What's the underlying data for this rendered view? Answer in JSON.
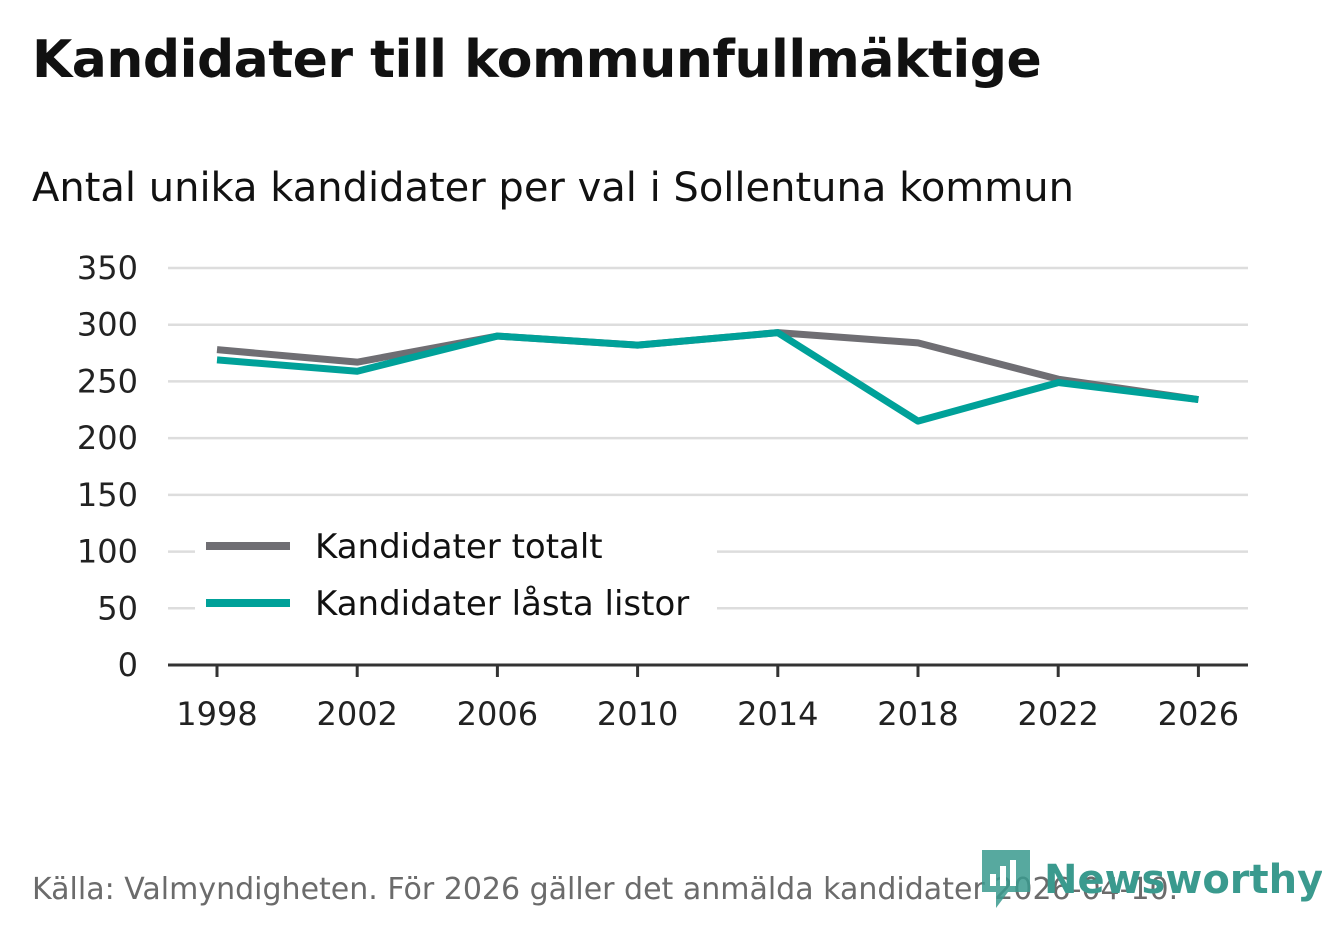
{
  "header": {
    "title": "Kandidater till kommunfullmäktige",
    "subtitle": "Antal unika kandidater per val i Sollentuna kommun"
  },
  "footer": {
    "source": "Källa: Valmyndigheten. För 2026 gäller det anmälda kandidater 2026-04-10.",
    "brand": "Newsworthy",
    "brand_icon": "newsworthy-logo-icon"
  },
  "colors": {
    "total": "#6f6e73",
    "locked": "#00a199",
    "grid": "#dddddd",
    "axis": "#333333",
    "brand": "#3a9a8e"
  },
  "chart_data": {
    "type": "line",
    "title": "Kandidater till kommunfullmäktige",
    "subtitle": "Antal unika kandidater per val i Sollentuna kommun",
    "xlabel": "",
    "ylabel": "",
    "x": [
      "1998",
      "2002",
      "2006",
      "2010",
      "2014",
      "2018",
      "2022",
      "2026"
    ],
    "yticks": [
      0,
      50,
      100,
      150,
      200,
      250,
      300,
      350
    ],
    "ylim": [
      0,
      350
    ],
    "grid": true,
    "legend_position": "bottom-left",
    "series": [
      {
        "name": "Kandidater totalt",
        "color": "#6f6e73",
        "values": [
          278,
          267,
          290,
          282,
          293,
          284,
          252,
          234
        ]
      },
      {
        "name": "Kandidater låsta listor",
        "color": "#00a199",
        "values": [
          269,
          259,
          290,
          282,
          293,
          215,
          249,
          234
        ]
      }
    ]
  }
}
